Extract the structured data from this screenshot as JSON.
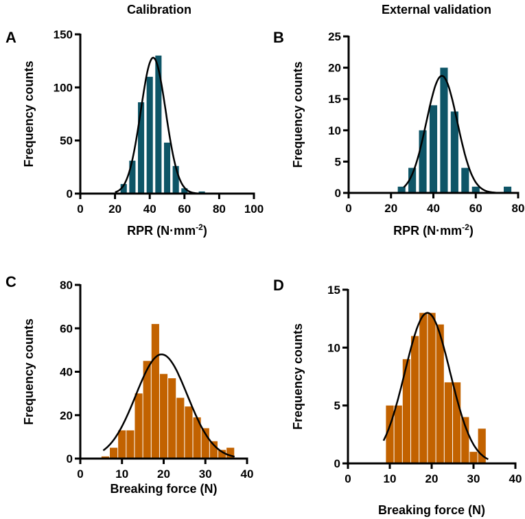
{
  "colors": {
    "calibration_bar": "#0e5567",
    "external_bar": "#0e5567",
    "force_bar": "#c26200",
    "curve": "#000000"
  },
  "column_titles": [
    "Calibration",
    "External validation"
  ],
  "chart_data": [
    {
      "panel": "A",
      "type": "bar",
      "title": "Calibration",
      "xlabel": "RPR (N·mm",
      "xlabel_sup": "-2",
      "xlabel_end": ")",
      "ylabel": "Frequency counts",
      "xlim": [
        0,
        100
      ],
      "ylim": [
        0,
        150
      ],
      "xticks": [
        0,
        20,
        40,
        60,
        80,
        100
      ],
      "yticks": [
        0,
        50,
        100,
        150
      ],
      "bin_width": 5,
      "x": [
        25,
        30,
        35,
        40,
        45,
        50,
        55,
        60,
        70
      ],
      "values": [
        9,
        31,
        86,
        110,
        130,
        48,
        26,
        5,
        2
      ],
      "fit": {
        "type": "gaussian",
        "mean": 42,
        "sd": 7.2,
        "peak": 128,
        "range": [
          20,
          72
        ]
      }
    },
    {
      "panel": "B",
      "type": "bar",
      "title": "External validation",
      "xlabel": "RPR (N·mm",
      "xlabel_sup": "-2",
      "xlabel_end": ")",
      "ylabel": "Frequency counts",
      "xlim": [
        0,
        80
      ],
      "ylim": [
        0,
        25
      ],
      "xticks": [
        0,
        20,
        40,
        60,
        80
      ],
      "yticks": [
        0,
        5,
        10,
        15,
        20,
        25
      ],
      "bin_width": 5,
      "x": [
        25,
        30,
        35,
        40,
        45,
        50,
        55,
        60,
        70,
        75
      ],
      "values": [
        1,
        4,
        10,
        14,
        20,
        13,
        4,
        1,
        0,
        1
      ],
      "fit": {
        "type": "gaussian",
        "mean": 44,
        "sd": 7.3,
        "peak": 18.7,
        "range": [
          26,
          72
        ]
      }
    },
    {
      "panel": "C",
      "type": "bar",
      "title": "",
      "xlabel": "Breaking force (N)",
      "ylabel": "Frequency counts",
      "xlim": [
        0,
        40
      ],
      "ylim": [
        0,
        80
      ],
      "xticks": [
        0,
        10,
        20,
        30,
        40
      ],
      "yticks": [
        0,
        20,
        40,
        60,
        80
      ],
      "bin_width": 2,
      "x": [
        6,
        8,
        10,
        12,
        14,
        16,
        18,
        20,
        22,
        24,
        26,
        28,
        30,
        32,
        34,
        36
      ],
      "values": [
        1,
        5,
        13,
        13,
        30,
        45,
        62,
        39,
        37,
        28,
        24,
        19,
        14,
        8,
        4,
        5
      ],
      "fit": {
        "type": "gaussian",
        "mean": 19.5,
        "sd": 6.2,
        "peak": 48,
        "range": [
          5.5,
          37
        ]
      }
    },
    {
      "panel": "D",
      "type": "bar",
      "title": "",
      "xlabel": "Breaking force (N)",
      "ylabel": "Frequency counts",
      "xlim": [
        0,
        40
      ],
      "ylim": [
        0,
        15
      ],
      "xticks": [
        0,
        10,
        20,
        30,
        40
      ],
      "yticks": [
        0,
        5,
        10,
        15
      ],
      "bin_width": 2,
      "x": [
        10,
        12,
        14,
        16,
        18,
        20,
        22,
        24,
        26,
        28,
        30,
        32
      ],
      "values": [
        5,
        5,
        9,
        11,
        13,
        13,
        12,
        7,
        7,
        4,
        1,
        3
      ],
      "fit": {
        "type": "gaussian",
        "mean": 19,
        "sd": 5.4,
        "peak": 13,
        "range": [
          8.5,
          33.5
        ]
      }
    }
  ]
}
